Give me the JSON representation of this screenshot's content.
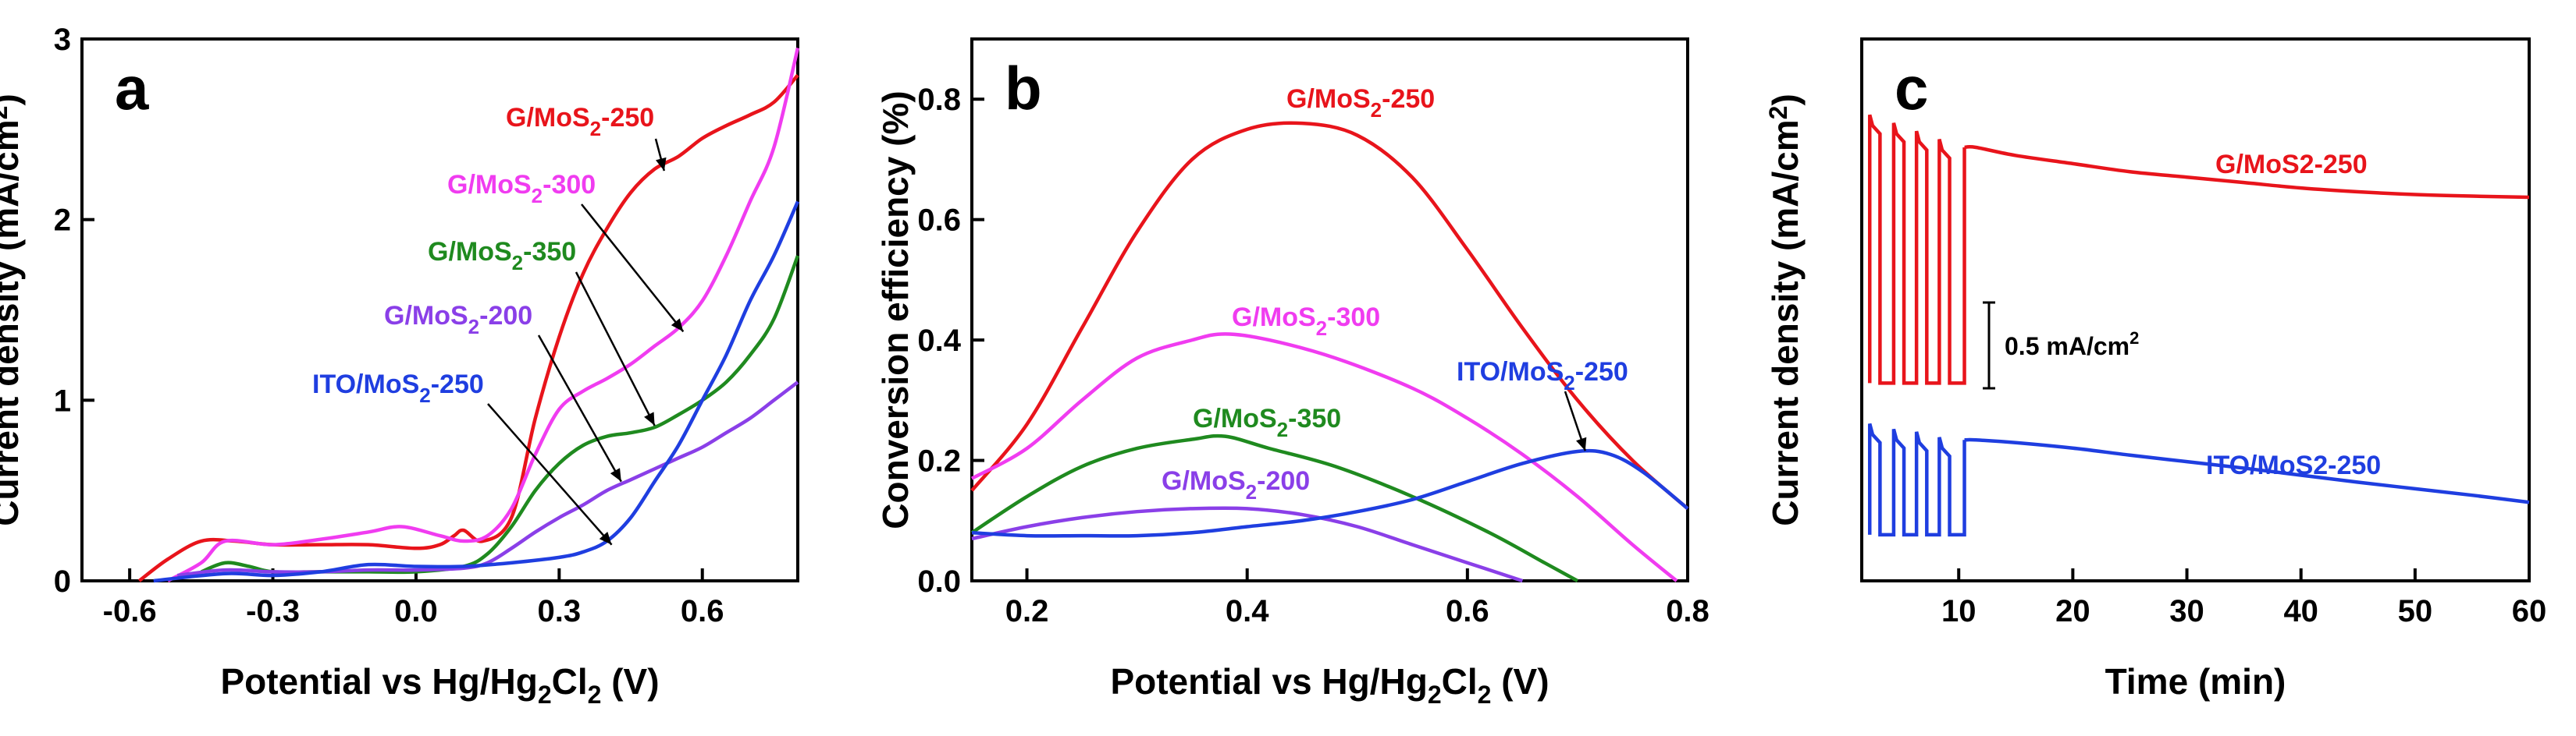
{
  "figure_title": "",
  "colors": {
    "red": "#e8141b",
    "magenta": "#f03cf0",
    "green": "#1f8a1f",
    "purple": "#8a3fe8",
    "blue": "#1f3ee0",
    "axis": "#000000"
  },
  "chart_data": [
    {
      "panel": "a",
      "type": "line",
      "xlabel_parts": [
        "Potential vs Hg/Hg",
        "2",
        "Cl",
        "2",
        " (V)"
      ],
      "ylabel_parts": [
        "Current density (mA/cm",
        "2",
        ")"
      ],
      "xlim": [
        -0.7,
        0.8
      ],
      "ylim": [
        0,
        3
      ],
      "xticks": [
        -0.6,
        -0.3,
        0.0,
        0.3,
        0.6
      ],
      "xtick_labels": [
        "-0.6",
        "-0.3",
        "0.0",
        "0.3",
        "0.6"
      ],
      "yticks": [
        0,
        1,
        2,
        3
      ],
      "ytick_labels": [
        "0",
        "1",
        "2",
        "3"
      ],
      "series": [
        {
          "name": "G/MoS2-250",
          "label_parts": [
            "G/MoS",
            "2",
            "-250"
          ],
          "color": "#e8141b",
          "x": [
            -0.58,
            -0.52,
            -0.45,
            -0.38,
            -0.3,
            -0.2,
            -0.1,
            0.0,
            0.05,
            0.08,
            0.1,
            0.14,
            0.2,
            0.25,
            0.3,
            0.35,
            0.4,
            0.45,
            0.5,
            0.55,
            0.6,
            0.65,
            0.7,
            0.75,
            0.8
          ],
          "y": [
            0.0,
            0.12,
            0.22,
            0.22,
            0.2,
            0.2,
            0.2,
            0.18,
            0.2,
            0.25,
            0.28,
            0.22,
            0.35,
            0.9,
            1.35,
            1.7,
            1.95,
            2.15,
            2.28,
            2.35,
            2.45,
            2.52,
            2.58,
            2.65,
            2.8
          ]
        },
        {
          "name": "G/MoS2-300",
          "label_parts": [
            "G/MoS",
            "2",
            "-300"
          ],
          "color": "#f03cf0",
          "x": [
            -0.52,
            -0.45,
            -0.4,
            -0.3,
            -0.2,
            -0.1,
            -0.03,
            0.05,
            0.1,
            0.15,
            0.2,
            0.25,
            0.3,
            0.35,
            0.4,
            0.45,
            0.5,
            0.55,
            0.6,
            0.65,
            0.7,
            0.75,
            0.8
          ],
          "y": [
            0.0,
            0.1,
            0.22,
            0.2,
            0.23,
            0.27,
            0.3,
            0.25,
            0.22,
            0.25,
            0.4,
            0.7,
            0.95,
            1.05,
            1.12,
            1.2,
            1.3,
            1.4,
            1.55,
            1.8,
            2.1,
            2.4,
            2.95
          ]
        },
        {
          "name": "G/MoS2-350",
          "label_parts": [
            "G/MoS",
            "2",
            "-350"
          ],
          "color": "#1f8a1f",
          "x": [
            -0.45,
            -0.4,
            -0.35,
            -0.3,
            -0.2,
            -0.1,
            0.0,
            0.1,
            0.15,
            0.2,
            0.25,
            0.3,
            0.35,
            0.4,
            0.45,
            0.5,
            0.55,
            0.6,
            0.65,
            0.7,
            0.75,
            0.8
          ],
          "y": [
            0.05,
            0.1,
            0.08,
            0.05,
            0.05,
            0.05,
            0.05,
            0.08,
            0.15,
            0.3,
            0.5,
            0.65,
            0.75,
            0.8,
            0.82,
            0.85,
            0.92,
            1.0,
            1.1,
            1.25,
            1.45,
            1.8
          ]
        },
        {
          "name": "G/MoS2-200",
          "label_parts": [
            "G/MoS",
            "2",
            "-200"
          ],
          "color": "#8a3fe8",
          "x": [
            -0.5,
            -0.4,
            -0.3,
            -0.2,
            -0.1,
            0.0,
            0.1,
            0.15,
            0.2,
            0.25,
            0.3,
            0.35,
            0.4,
            0.45,
            0.5,
            0.55,
            0.6,
            0.65,
            0.7,
            0.75,
            0.8
          ],
          "y": [
            0.03,
            0.06,
            0.05,
            0.05,
            0.06,
            0.06,
            0.07,
            0.1,
            0.18,
            0.27,
            0.35,
            0.42,
            0.5,
            0.56,
            0.62,
            0.68,
            0.74,
            0.82,
            0.9,
            1.0,
            1.1
          ]
        },
        {
          "name": "ITO/MoS2-250",
          "label_parts": [
            "ITO/MoS",
            "2",
            "-250"
          ],
          "color": "#1f3ee0",
          "x": [
            -0.55,
            -0.4,
            -0.3,
            -0.2,
            -0.1,
            0.0,
            0.1,
            0.2,
            0.3,
            0.35,
            0.4,
            0.45,
            0.5,
            0.55,
            0.6,
            0.65,
            0.7,
            0.75,
            0.8
          ],
          "y": [
            0.0,
            0.04,
            0.03,
            0.05,
            0.09,
            0.08,
            0.08,
            0.1,
            0.13,
            0.16,
            0.22,
            0.35,
            0.55,
            0.75,
            1.0,
            1.25,
            1.55,
            1.8,
            2.1
          ]
        }
      ]
    },
    {
      "panel": "b",
      "type": "line",
      "xlabel_parts": [
        "Potential vs Hg/Hg",
        "2",
        "Cl",
        "2",
        " (V)"
      ],
      "ylabel_parts": [
        "Conversion efficiency (%)"
      ],
      "xlim": [
        0.15,
        0.8
      ],
      "ylim": [
        0,
        0.9
      ],
      "xticks": [
        0.2,
        0.4,
        0.6,
        0.8
      ],
      "xtick_labels": [
        "0.2",
        "0.4",
        "0.6",
        "0.8"
      ],
      "yticks": [
        0.0,
        0.2,
        0.4,
        0.6,
        0.8
      ],
      "ytick_labels": [
        "0.0",
        "0.2",
        "0.4",
        "0.6",
        "0.8"
      ],
      "series": [
        {
          "name": "G/MoS2-250",
          "label_parts": [
            "G/MoS",
            "2",
            "-250"
          ],
          "color": "#e8141b",
          "x": [
            0.15,
            0.2,
            0.25,
            0.3,
            0.35,
            0.4,
            0.45,
            0.5,
            0.55,
            0.6,
            0.65,
            0.7,
            0.75,
            0.8
          ],
          "y": [
            0.15,
            0.26,
            0.42,
            0.58,
            0.7,
            0.75,
            0.76,
            0.74,
            0.67,
            0.55,
            0.42,
            0.3,
            0.2,
            0.12
          ]
        },
        {
          "name": "G/MoS2-300",
          "label_parts": [
            "G/MoS",
            "2",
            "-300"
          ],
          "color": "#f03cf0",
          "x": [
            0.15,
            0.2,
            0.25,
            0.3,
            0.35,
            0.38,
            0.42,
            0.48,
            0.55,
            0.6,
            0.65,
            0.7,
            0.75,
            0.79
          ],
          "y": [
            0.17,
            0.22,
            0.3,
            0.37,
            0.4,
            0.41,
            0.4,
            0.37,
            0.32,
            0.27,
            0.21,
            0.14,
            0.06,
            0.0
          ]
        },
        {
          "name": "G/MoS2-350",
          "label_parts": [
            "G/MoS",
            "2",
            "-350"
          ],
          "color": "#1f8a1f",
          "x": [
            0.15,
            0.2,
            0.25,
            0.3,
            0.35,
            0.38,
            0.42,
            0.48,
            0.55,
            0.62,
            0.67,
            0.7
          ],
          "y": [
            0.08,
            0.14,
            0.19,
            0.22,
            0.235,
            0.24,
            0.22,
            0.19,
            0.14,
            0.08,
            0.03,
            0.0
          ]
        },
        {
          "name": "G/MoS2-200",
          "label_parts": [
            "G/MoS",
            "2",
            "-200"
          ],
          "color": "#8a3fe8",
          "x": [
            0.15,
            0.2,
            0.25,
            0.3,
            0.35,
            0.4,
            0.45,
            0.5,
            0.55,
            0.6,
            0.65
          ],
          "y": [
            0.07,
            0.09,
            0.105,
            0.115,
            0.12,
            0.12,
            0.11,
            0.09,
            0.06,
            0.03,
            0.0
          ]
        },
        {
          "name": "ITO/MoS2-250",
          "label_parts": [
            "ITO/MoS",
            "2",
            "-250"
          ],
          "color": "#1f3ee0",
          "x": [
            0.15,
            0.2,
            0.25,
            0.3,
            0.35,
            0.4,
            0.45,
            0.5,
            0.55,
            0.6,
            0.65,
            0.7,
            0.73,
            0.76,
            0.8
          ],
          "y": [
            0.08,
            0.075,
            0.075,
            0.075,
            0.08,
            0.09,
            0.1,
            0.115,
            0.135,
            0.165,
            0.195,
            0.215,
            0.21,
            0.18,
            0.12
          ]
        }
      ]
    },
    {
      "panel": "c",
      "type": "line",
      "xlabel_parts": [
        "Time (min)"
      ],
      "ylabel_parts": [
        "Current density (mA/cm",
        "2",
        ")"
      ],
      "xlim": [
        1.5,
        60
      ],
      "ylim": [
        0,
        1
      ],
      "xticks": [
        10,
        20,
        30,
        40,
        50,
        60
      ],
      "xtick_labels": [
        "10",
        "20",
        "30",
        "40",
        "50",
        "60"
      ],
      "yticks": [],
      "scale_bar_label": "0.5 mA/cm",
      "scale_bar_sup": "2",
      "scale_bar_mA": 0.5,
      "series": [
        {
          "name": "G/MoS2-250",
          "label": "G/MoS2-250",
          "color": "#e8141b",
          "chop_on_off": [
            [
              2.2,
              0.86,
              0.365
            ],
            [
              4.3,
              0.845,
              0.365
            ],
            [
              6.3,
              0.83,
              0.365
            ],
            [
              8.3,
              0.815,
              0.365
            ]
          ],
          "chop_end": 10.5,
          "steady": {
            "x": [
              10.5,
              11.5,
              15,
              20,
              25,
              30,
              35,
              40,
              45,
              50,
              55,
              60
            ],
            "y": [
              0.8,
              0.8,
              0.785,
              0.77,
              0.755,
              0.745,
              0.735,
              0.725,
              0.718,
              0.713,
              0.71,
              0.708
            ]
          }
        },
        {
          "name": "ITO/MoS2-250",
          "label": "ITO/MoS2-250",
          "color": "#1f3ee0",
          "chop_on_off": [
            [
              2.2,
              0.29,
              0.085
            ],
            [
              4.3,
              0.28,
              0.085
            ],
            [
              6.3,
              0.275,
              0.085
            ],
            [
              8.3,
              0.265,
              0.085
            ]
          ],
          "chop_end": 10.5,
          "steady": {
            "x": [
              10.5,
              11.5,
              15,
              20,
              25,
              30,
              35,
              40,
              45,
              50,
              55,
              60
            ],
            "y": [
              0.26,
              0.26,
              0.255,
              0.245,
              0.232,
              0.22,
              0.208,
              0.195,
              0.182,
              0.17,
              0.158,
              0.145
            ]
          }
        }
      ]
    }
  ]
}
